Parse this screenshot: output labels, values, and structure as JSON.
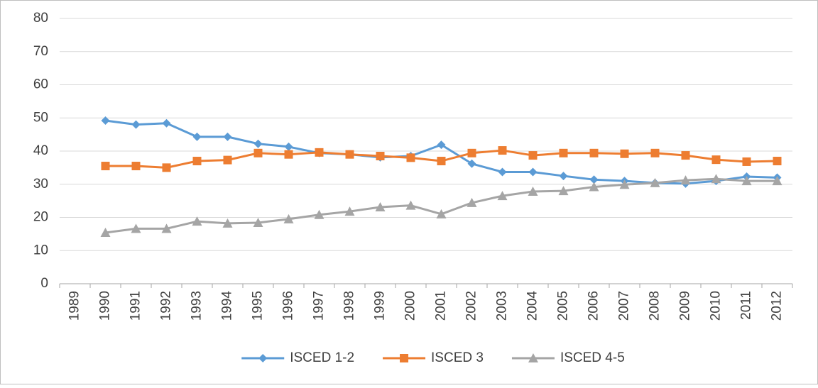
{
  "chart_data": {
    "type": "line",
    "categories": [
      "1989",
      "1990",
      "1991",
      "1992",
      "1993",
      "1994",
      "1995",
      "1996",
      "1997",
      "1998",
      "1999",
      "2000",
      "2001",
      "2002",
      "2003",
      "2004",
      "2005",
      "2006",
      "2007",
      "2008",
      "2009",
      "2010",
      "2011",
      "2012"
    ],
    "series": [
      {
        "name": "ISCED 1-2",
        "color": "#5b9bd5",
        "marker": "diamond",
        "values": [
          null,
          49.2,
          48,
          48.4,
          44.3,
          44.3,
          42.2,
          41.3,
          39.4,
          39,
          38.1,
          38.5,
          41.9,
          36.2,
          33.7,
          33.7,
          32.5,
          31.4,
          31,
          30.4,
          30.2,
          31,
          32.3,
          32
        ]
      },
      {
        "name": "ISCED 3",
        "color": "#ed7d31",
        "marker": "square",
        "values": [
          null,
          35.5,
          35.5,
          35,
          37,
          37.3,
          39.4,
          39,
          39.6,
          39,
          38.5,
          38,
          37,
          39.4,
          40.2,
          38.7,
          39.4,
          39.4,
          39.2,
          39.4,
          38.7,
          37.4,
          36.8,
          37
        ]
      },
      {
        "name": "ISCED 4-5",
        "color": "#a5a5a5",
        "marker": "triangle",
        "values": [
          null,
          15.4,
          16.6,
          16.6,
          18.8,
          18.2,
          18.4,
          19.5,
          20.8,
          21.8,
          23.1,
          23.6,
          21,
          24.4,
          26.5,
          27.8,
          28,
          29.2,
          29.9,
          30.4,
          31.2,
          31.6,
          31,
          31
        ]
      }
    ],
    "ylim": [
      0,
      80
    ],
    "yticks": [
      0,
      10,
      20,
      30,
      40,
      50,
      60,
      70,
      80
    ],
    "grid": true,
    "legend": "bottom"
  }
}
